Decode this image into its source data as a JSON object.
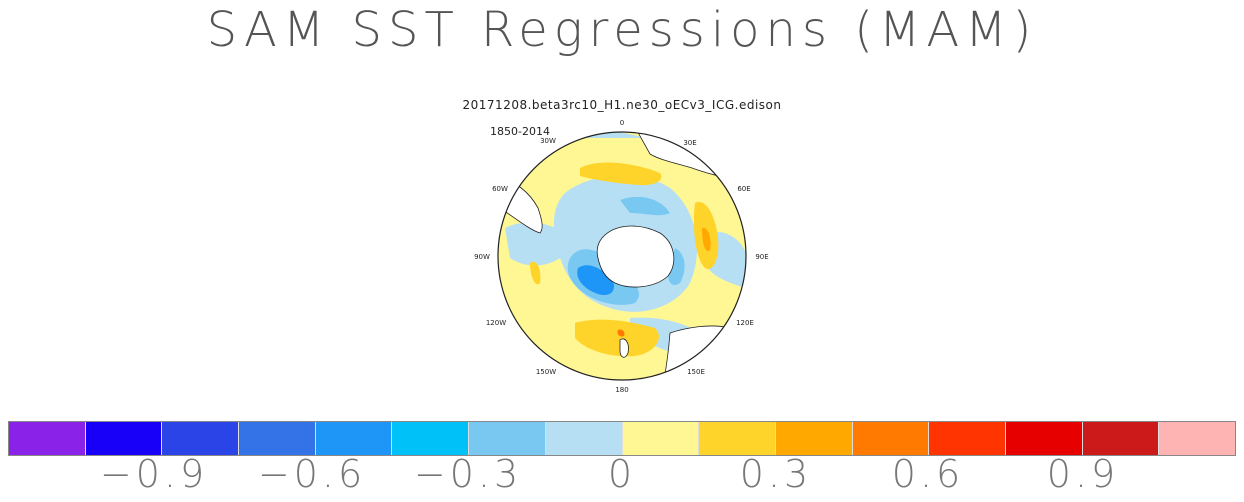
{
  "title": "SAM SST Regressions (MAM)",
  "subtitle": "20171208.beta3rc10_H1.ne30_oECv3_ICG.edison",
  "period": "1850-2014",
  "map": {
    "projection": "polar-stereographic-south",
    "longitude_labels": {
      "lon_0": "0",
      "lon_30E": "30E",
      "lon_60E": "60E",
      "lon_90E": "90E",
      "lon_120E": "120E",
      "lon_150E": "150E",
      "lon_180": "180",
      "lon_150W": "150W",
      "lon_120W": "120W",
      "lon_90W": "90W",
      "lon_60W": "60W",
      "lon_30W": "30W"
    }
  },
  "colorbar": {
    "colors": [
      "#8a22e8",
      "#1800f8",
      "#2a44e8",
      "#3472e8",
      "#1e96f8",
      "#00c2f8",
      "#78c8f2",
      "#b6dff4",
      "#fff694",
      "#ffd42a",
      "#ffa800",
      "#ff7a00",
      "#ff3400",
      "#e60000",
      "#cc1a1a",
      "#ffb4b4"
    ],
    "labels": {
      "neg_0_9": "−0.9",
      "neg_0_6": "−0.6",
      "neg_0_3": "−0.3",
      "zero": "0",
      "pos_0_3": "0.3",
      "pos_0_6": "0.6",
      "pos_0_9": "0.9"
    }
  }
}
